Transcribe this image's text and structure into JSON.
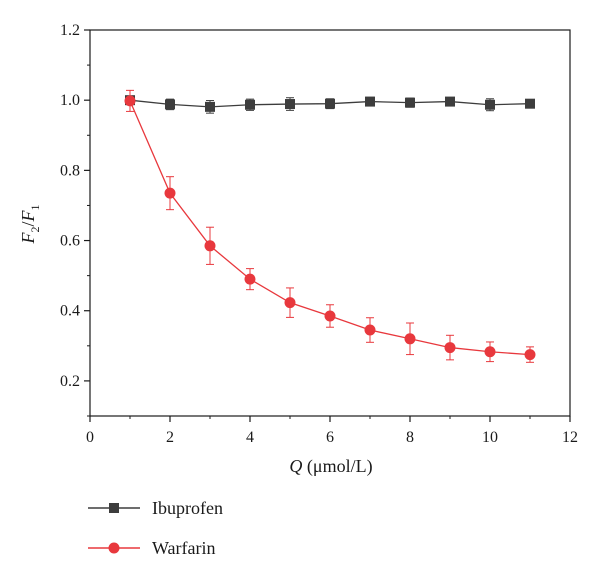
{
  "chart_data": {
    "type": "line",
    "xlabel_italic": "Q",
    "xlabel_rest": " (μmol/L)",
    "ylabel_num": "F",
    "ylabel_num_sub": "2",
    "ylabel_sep": "/",
    "ylabel_den": "F",
    "ylabel_den_sub": "1",
    "xlim": [
      0,
      12
    ],
    "ylim": [
      0.1,
      1.2
    ],
    "x_ticks": [
      0,
      2,
      4,
      6,
      8,
      10,
      12
    ],
    "x_tick_labels": [
      "0",
      "2",
      "4",
      "6",
      "8",
      "10",
      "12"
    ],
    "y_ticks": [
      0.2,
      0.4,
      0.6,
      0.8,
      1.0,
      1.2
    ],
    "y_tick_labels": [
      "0.2",
      "0.4",
      "0.6",
      "0.8",
      "1.0",
      "1.2"
    ],
    "grid": false,
    "legend_position": "bottom-left, below plot",
    "x": [
      1,
      2,
      3,
      4,
      5,
      6,
      7,
      8,
      9,
      10,
      11
    ],
    "series": [
      {
        "name": "Ibuprofen",
        "marker": "square",
        "color": "#3d3d3d",
        "values": [
          1.0,
          0.988,
          0.981,
          0.987,
          0.989,
          0.99,
          0.996,
          0.993,
          0.996,
          0.987,
          0.99
        ],
        "errors": [
          0.012,
          0.015,
          0.018,
          0.016,
          0.018,
          0.014,
          0.012,
          0.013,
          0.01,
          0.017,
          0.01
        ]
      },
      {
        "name": "Warfarin",
        "marker": "circle",
        "color": "#e8383d",
        "values": [
          0.998,
          0.735,
          0.585,
          0.49,
          0.423,
          0.385,
          0.345,
          0.32,
          0.295,
          0.283,
          0.275
        ],
        "errors": [
          0.03,
          0.047,
          0.053,
          0.03,
          0.042,
          0.032,
          0.035,
          0.045,
          0.035,
          0.028,
          0.022
        ]
      }
    ]
  }
}
